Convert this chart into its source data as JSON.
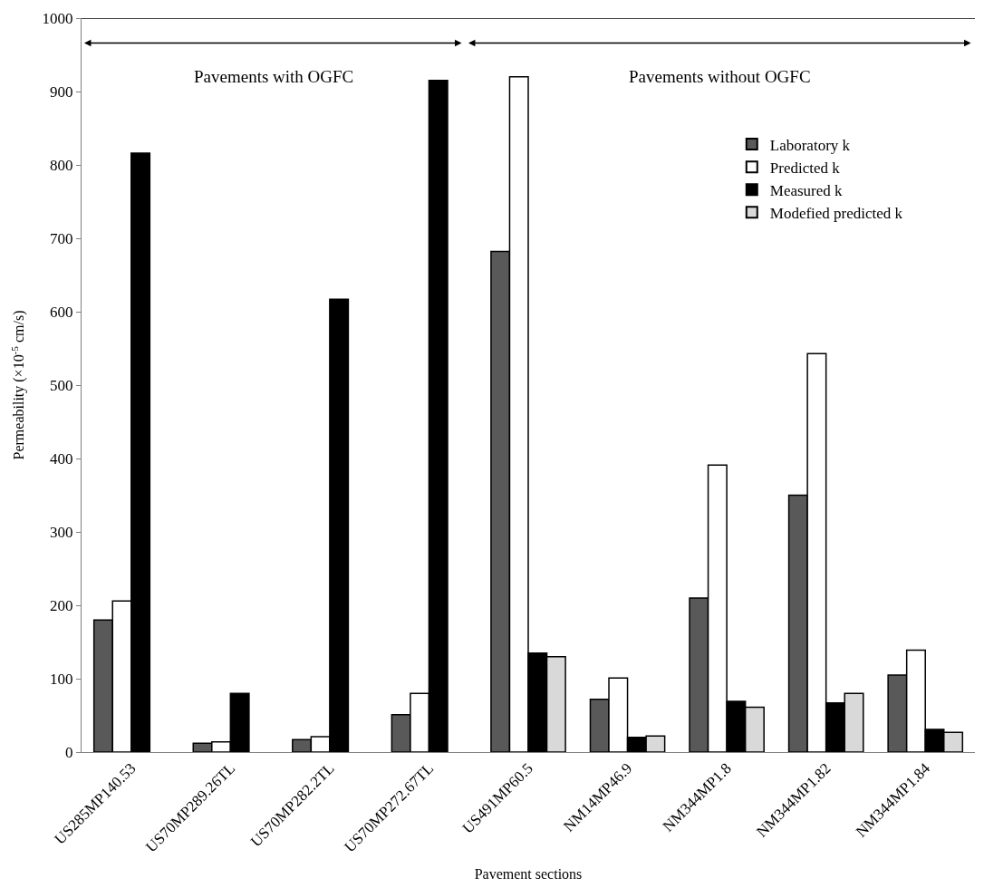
{
  "chart_data": {
    "type": "bar",
    "xlabel": "Pavement sections",
    "ylabel": "Permeability (×10$^{-5}$ cm/s)",
    "categories": [
      "US285MP140.53",
      "US70MP289.26TL",
      "US70MP282.2TL",
      "US70MP272.67TL",
      "US491MP60.5",
      "NM14MP46.9",
      "NM344MP1.8",
      "NM344MP1.82",
      "NM344MP1.84"
    ],
    "series": [
      {
        "name": "Laboratory k",
        "color": "#595959",
        "values": [
          180,
          12,
          17,
          51,
          682,
          72,
          210,
          350,
          105
        ]
      },
      {
        "name": "Predicted k",
        "color": "#ffffff",
        "values": [
          206,
          14,
          21,
          80,
          920,
          101,
          391,
          543,
          139
        ]
      },
      {
        "name": "Measured k",
        "color": "#000000",
        "values": [
          816,
          80,
          617,
          915,
          135,
          20,
          69,
          67,
          31
        ]
      },
      {
        "name": "Modefied predicted k",
        "color": "#d9d9d9",
        "values": [
          null,
          null,
          null,
          null,
          130,
          22,
          61,
          80,
          27
        ]
      }
    ],
    "ylim": [
      0,
      1000
    ],
    "yticks": [
      0,
      100,
      200,
      300,
      400,
      500,
      600,
      700,
      800,
      900,
      1000
    ],
    "annotations": [
      "Pavements with OGFC",
      "Pavements without OGFC"
    ],
    "legend": "right"
  }
}
